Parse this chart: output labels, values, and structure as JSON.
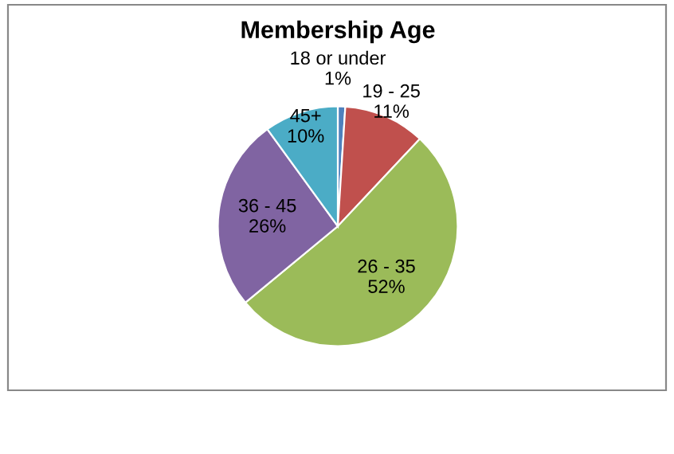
{
  "chart_data": {
    "type": "pie",
    "title": "Membership Age",
    "categories": [
      "18 or under",
      "19 - 25",
      "26 - 35",
      "36 - 45",
      "45+"
    ],
    "values": [
      1,
      11,
      52,
      26,
      10
    ],
    "value_labels": [
      "1%",
      "11%",
      "52%",
      "26%",
      "10%"
    ],
    "colors": [
      "#4f81bd",
      "#c0504d",
      "#9bbb59",
      "#8064a2",
      "#4bacc6"
    ],
    "legend": false
  }
}
